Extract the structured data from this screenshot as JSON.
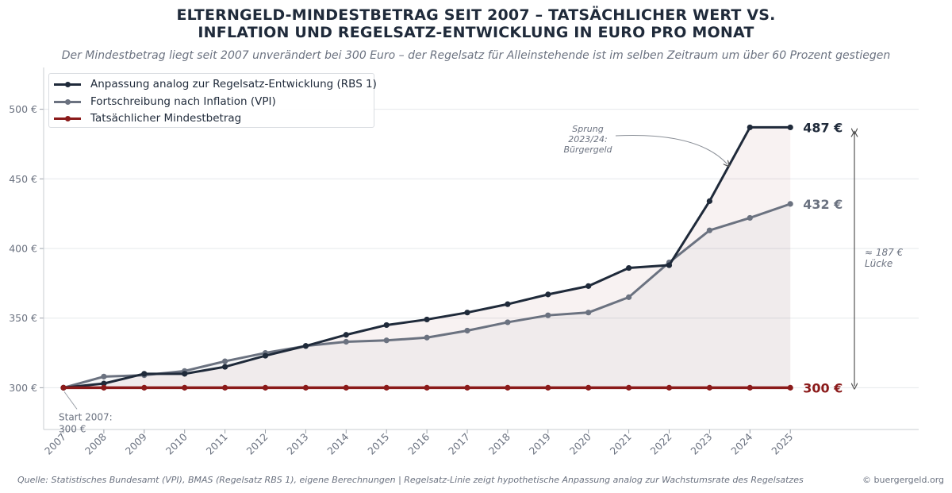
{
  "title_line1": "ELTERNGELD-MINDESTBETRAG SEIT 2007 – TATSÄCHLICHER WERT VS.",
  "title_line2": "INFLATION UND REGELSATZ-ENTWICKLUNG IN EURO PRO MONAT",
  "subtitle": "Der Mindestbetrag liegt seit 2007 unverändert bei 300 Euro – der Regelsatz für Alleinstehende ist im selben Zeitraum um über 60 Prozent gestiegen",
  "footer": {
    "source": "Quelle: Statistisches Bundesamt (VPI), BMAS (Regelsatz RBS 1), eigene Berechnungen | Regelsatz-Linie zeigt hypothetische Anpassung analog zur Wachstumsrate des Regelsatzes",
    "credit": "© buergergeld.org"
  },
  "chart_data": {
    "type": "line",
    "title": "ELTERNGELD-MINDESTBETRAG SEIT 2007 – TATSÄCHLICHER WERT VS. INFLATION UND REGELSATZ-ENTWICKLUNG IN EURO PRO MONAT",
    "xlabel": "",
    "ylabel": "",
    "ylim": [
      270,
      530
    ],
    "yticks": [
      300,
      350,
      400,
      450,
      500
    ],
    "ytick_labels": [
      "300 €",
      "350 €",
      "400 €",
      "450 €",
      "500 €"
    ],
    "grid": "horizontal",
    "legend_position": "top-left",
    "x": [
      "2007",
      "2008",
      "2009",
      "2010",
      "2011",
      "2012",
      "2013",
      "2014",
      "2015",
      "2016",
      "2017",
      "2018",
      "2019",
      "2020",
      "2021",
      "2022",
      "2023",
      "2024",
      "2025"
    ],
    "series": [
      {
        "name": "Anpassung analog zur Regelsatz-Entwicklung (RBS 1)",
        "color": "#1f2a3a",
        "values": [
          300,
          303,
          310,
          310,
          315,
          323,
          330,
          338,
          345,
          349,
          354,
          360,
          367,
          373,
          386,
          388,
          434,
          487,
          487
        ],
        "end_label": "487 €"
      },
      {
        "name": "Fortschreibung nach Inflation (VPI)",
        "color": "#6b7280",
        "values": [
          300,
          308,
          309,
          312,
          319,
          325,
          330,
          333,
          334,
          336,
          341,
          347,
          352,
          354,
          365,
          390,
          413,
          422,
          432
        ],
        "end_label": "432 €"
      },
      {
        "name": "Tatsächlicher Mindestbetrag",
        "color": "#8b1a1a",
        "values": [
          300,
          300,
          300,
          300,
          300,
          300,
          300,
          300,
          300,
          300,
          300,
          300,
          300,
          300,
          300,
          300,
          300,
          300,
          300
        ],
        "end_label": "300 €"
      }
    ],
    "annotations": {
      "start": [
        "Start 2007:",
        "300 €"
      ],
      "jump": [
        "Sprung",
        "2023/24:",
        "Bürgergeld"
      ],
      "gap": [
        "≈ 187 €",
        "Lücke"
      ]
    }
  }
}
